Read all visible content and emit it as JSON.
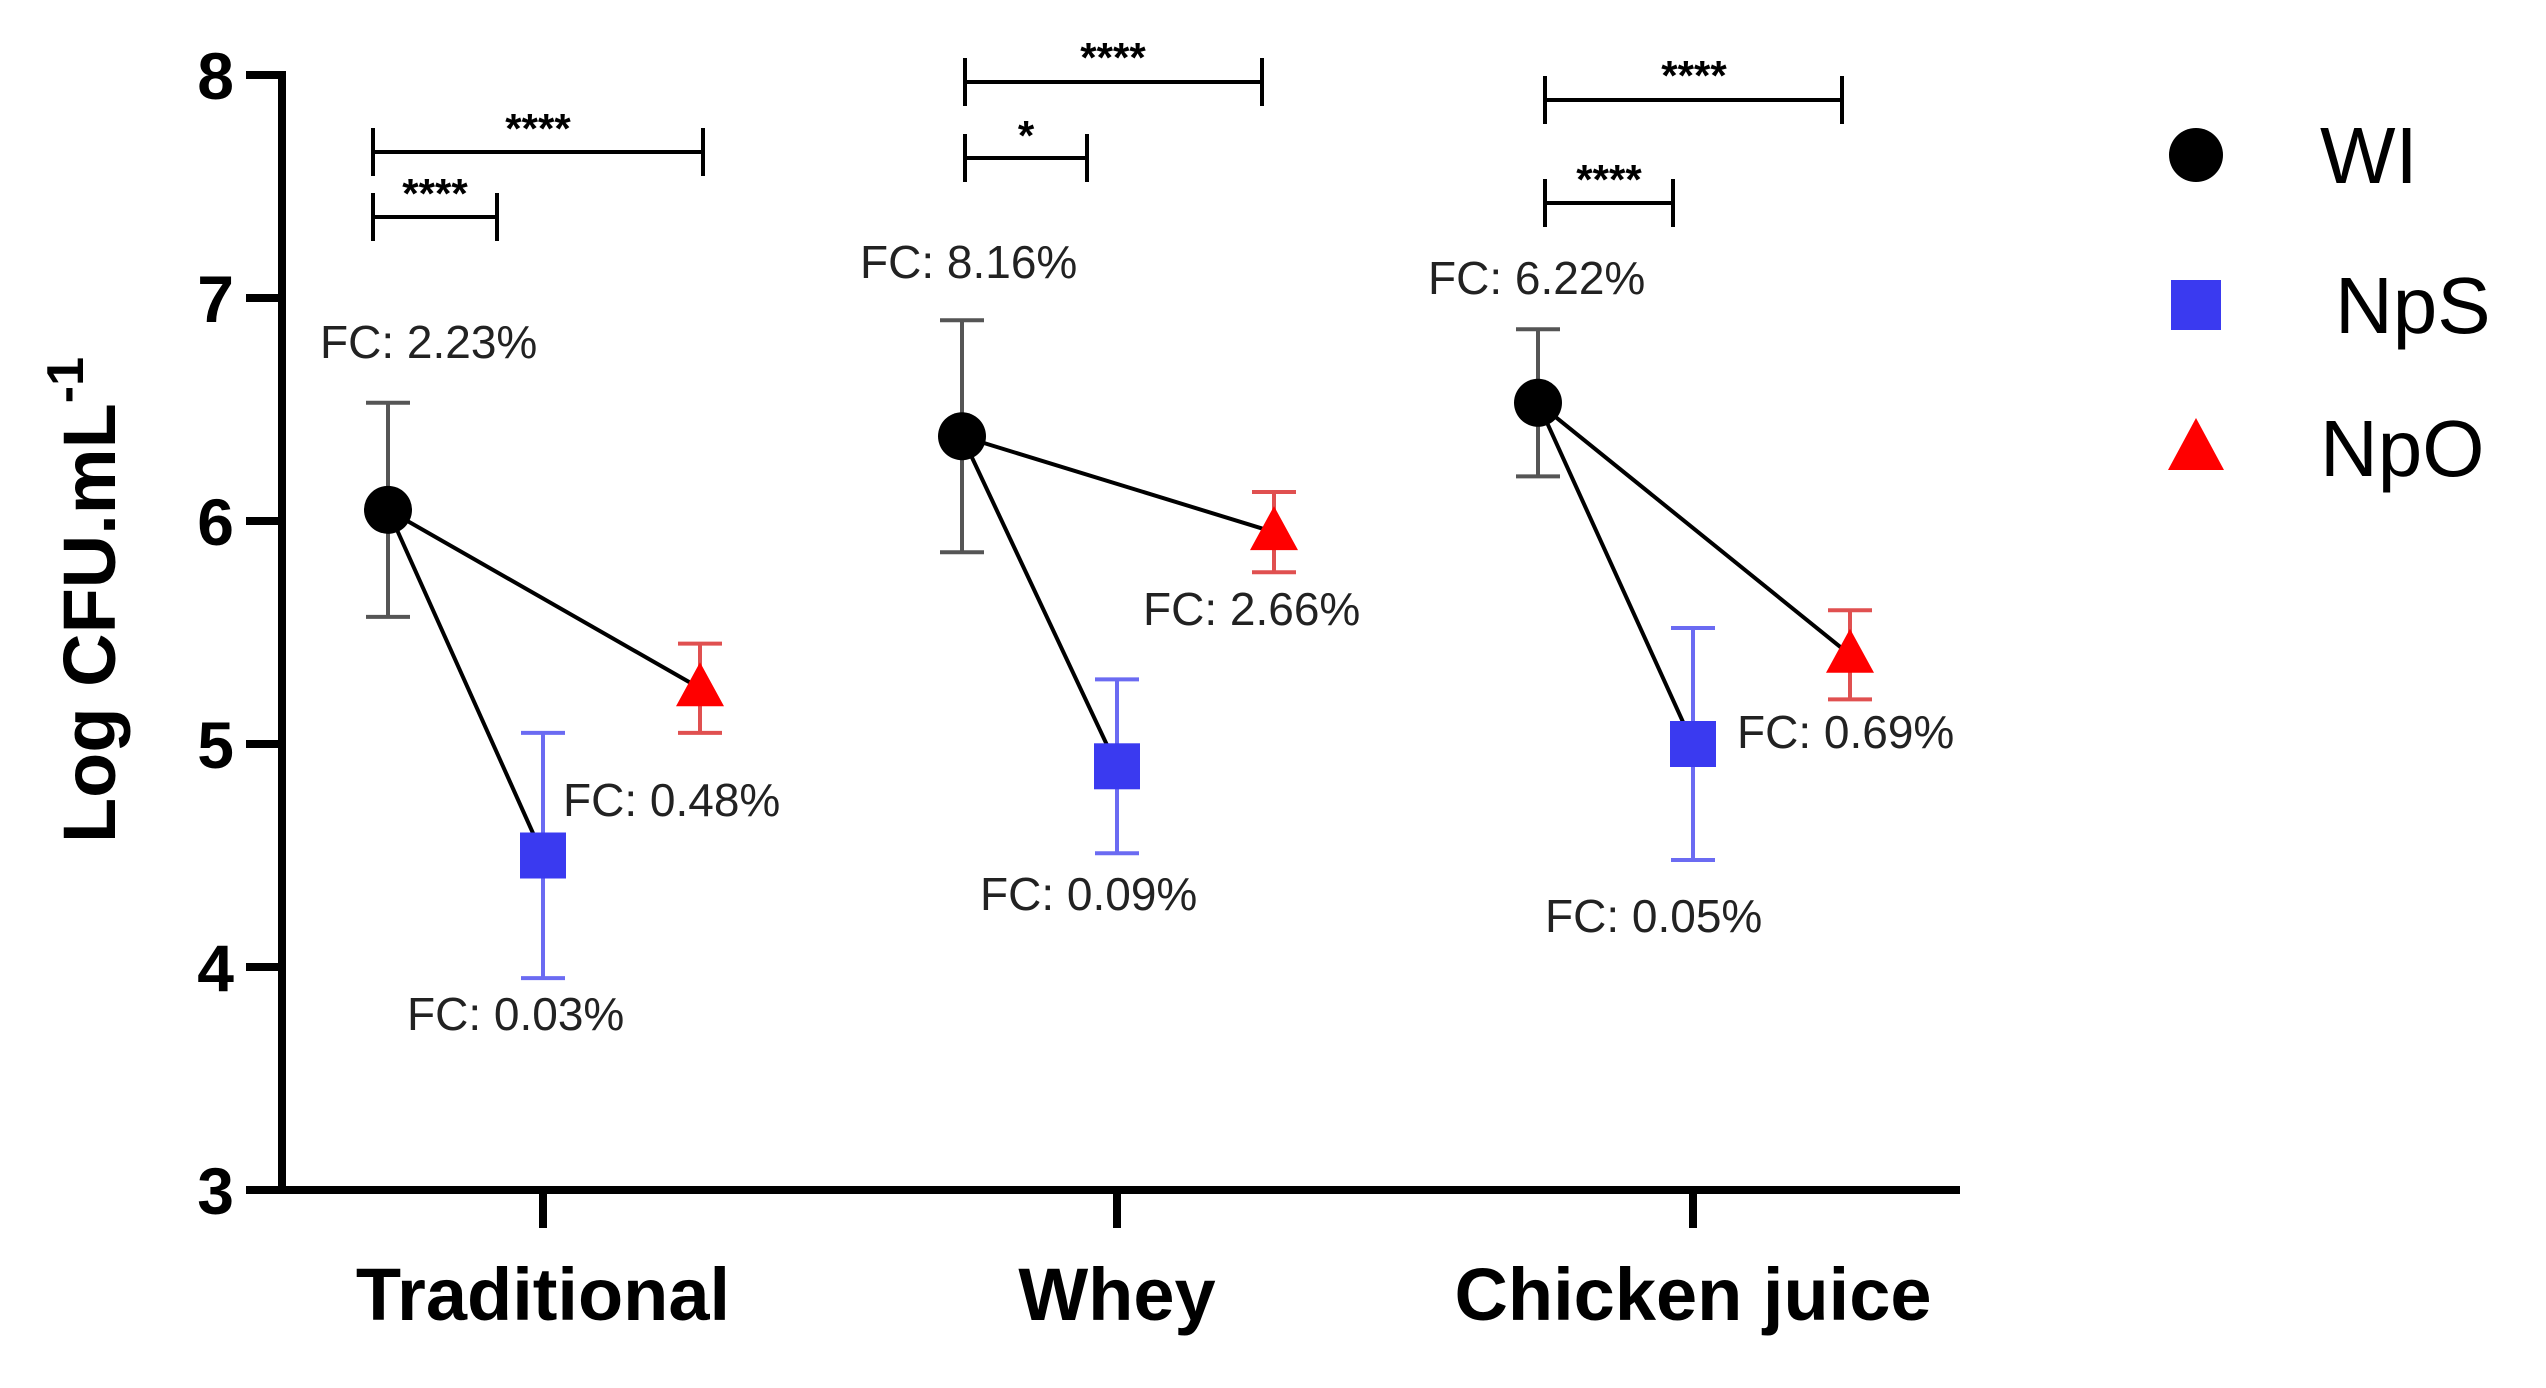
{
  "chart_data": {
    "type": "scatter",
    "title": "",
    "xlabel": "",
    "ylabel": "Log CFU.mL",
    "ylabel_superscript": "-1",
    "ylim": [
      3,
      8
    ],
    "yticks": [
      "3",
      "4",
      "5",
      "6",
      "7",
      "8"
    ],
    "categories": [
      "Traditional",
      "Whey",
      "Chicken juice"
    ],
    "series": [
      {
        "name": "WI",
        "marker": "circle",
        "color": "#000000",
        "errorColor": "#555555",
        "values": [
          6.05,
          6.38,
          6.53
        ],
        "errors": [
          0.48,
          0.52,
          0.33
        ],
        "fc_labels": [
          "FC: 2.23%",
          "FC: 8.16%",
          "FC: 6.22%"
        ]
      },
      {
        "name": "NpS",
        "marker": "square",
        "color": "#3a3af0",
        "errorColor": "#6b6bf2",
        "values": [
          4.5,
          4.9,
          5.0
        ],
        "errors": [
          0.55,
          0.39,
          0.52
        ],
        "fc_labels": [
          "FC: 0.03%",
          "FC: 0.09%",
          "FC: 0.05%"
        ]
      },
      {
        "name": "NpO",
        "marker": "triangle",
        "color": "#ff0000",
        "errorColor": "#e05050",
        "values": [
          5.25,
          5.95,
          5.4
        ],
        "errors": [
          0.2,
          0.18,
          0.2
        ],
        "fc_labels": [
          "FC: 0.48%",
          "FC: 2.66%",
          "FC: 0.69%"
        ]
      }
    ],
    "significance": [
      {
        "category": "Traditional",
        "pair": [
          "WI",
          "NpS"
        ],
        "label": "****"
      },
      {
        "category": "Traditional",
        "pair": [
          "WI",
          "NpO"
        ],
        "label": "****"
      },
      {
        "category": "Whey",
        "pair": [
          "WI",
          "NpS"
        ],
        "label": "*"
      },
      {
        "category": "Whey",
        "pair": [
          "WI",
          "NpO"
        ],
        "label": "****"
      },
      {
        "category": "Chicken juice",
        "pair": [
          "WI",
          "NpS"
        ],
        "label": "****"
      },
      {
        "category": "Chicken juice",
        "pair": [
          "WI",
          "NpO"
        ],
        "label": "****"
      }
    ],
    "legend": {
      "position": "top-right",
      "entries": [
        "WI",
        "NpS",
        "NpO"
      ]
    }
  }
}
